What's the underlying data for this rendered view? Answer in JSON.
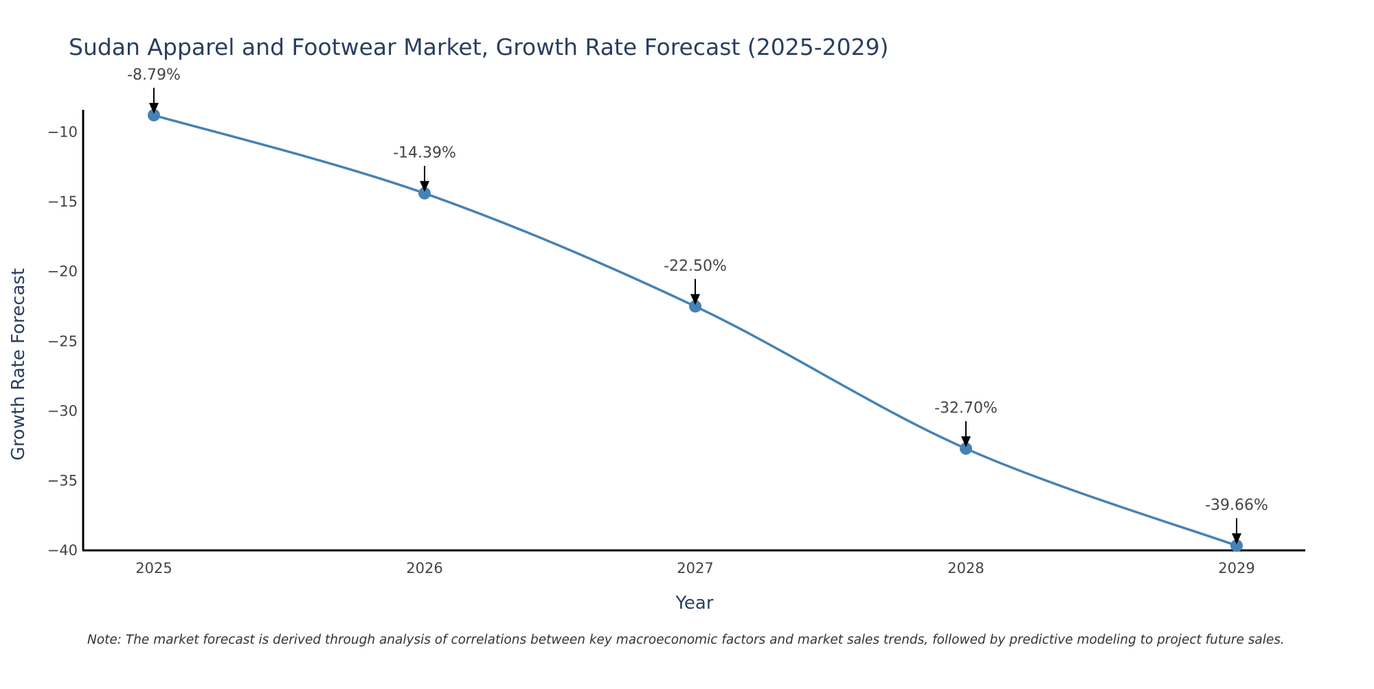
{
  "chart_data": {
    "type": "line",
    "title": "Sudan Apparel and Footwear Market, Growth Rate Forecast (2025-2029)",
    "xlabel": "Year",
    "ylabel": "Growth Rate Forecast",
    "categories": [
      "2025",
      "2026",
      "2027",
      "2028",
      "2029"
    ],
    "series": [
      {
        "name": "Growth Rate Forecast",
        "values": [
          -8.79,
          -14.39,
          -22.5,
          -32.7,
          -39.66
        ],
        "color": "#4682b4"
      }
    ],
    "annotations": [
      "-8.79%",
      "-14.39%",
      "-22.50%",
      "-32.70%",
      "-39.66%"
    ],
    "yticks": [
      -10,
      -15,
      -20,
      -25,
      -30,
      -35,
      -40
    ],
    "ytick_labels": [
      "−10",
      "−15",
      "−20",
      "−25",
      "−30",
      "−35",
      "−40"
    ],
    "ylim": [
      -40,
      -8.4
    ],
    "grid": false,
    "note": "Note: The market forecast is derived through analysis of correlations between key macroeconomic factors and market sales trends, followed by predictive modeling to project future sales.",
    "colors": {
      "line": "#4682b4",
      "axis": "#000000",
      "arrow": "#000000"
    }
  }
}
